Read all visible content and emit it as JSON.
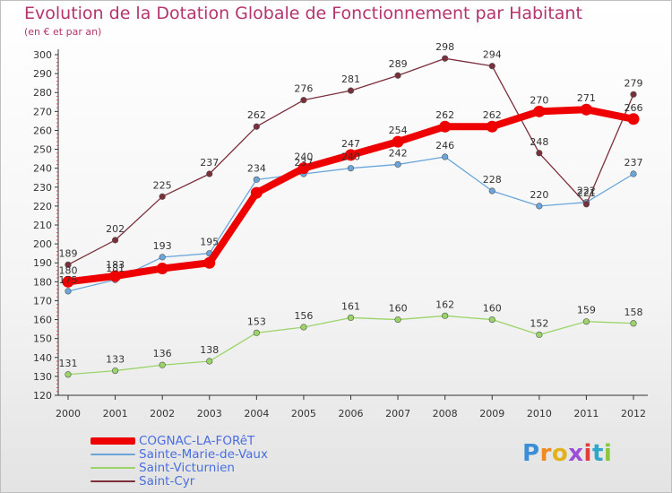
{
  "title": "Evolution de la Dotation Globale de Fonctionnement par Habitant",
  "subtitle": "(en € et par an)",
  "logo": {
    "text": "Proxiti",
    "letters": [
      {
        "ch": "P",
        "color": "#3a8fd6"
      },
      {
        "ch": "r",
        "color": "#f08a1c"
      },
      {
        "ch": "o",
        "color": "#e2b21a"
      },
      {
        "ch": "x",
        "color": "#9c4fd6"
      },
      {
        "ch": "i",
        "color": "#e23c3c"
      },
      {
        "ch": "t",
        "color": "#2ea7c9"
      },
      {
        "ch": "i",
        "color": "#8cc63f"
      }
    ]
  },
  "chart_data": {
    "type": "line",
    "x": [
      "2000",
      "2001",
      "2002",
      "2003",
      "2004",
      "2005",
      "2006",
      "2007",
      "2008",
      "2009",
      "2010",
      "2011",
      "2012"
    ],
    "ylim": [
      120,
      300
    ],
    "ytick_step": 10,
    "grid": false,
    "legend_position": "bottom-left",
    "series": [
      {
        "name": "COGNAC-LA-FORêT",
        "color": "#ee0000",
        "emphasis": true,
        "values": [
          180,
          183,
          187,
          190,
          227,
          240,
          247,
          254,
          262,
          262,
          270,
          271,
          266
        ],
        "labels": [
          "180",
          "183",
          null,
          null,
          null,
          "240",
          "247",
          "254",
          "262",
          "262",
          "270",
          "271",
          "266"
        ]
      },
      {
        "name": "Sainte-Marie-de-Vaux",
        "color": "#6aa6da",
        "emphasis": false,
        "values": [
          175,
          181,
          193,
          195,
          234,
          237,
          240,
          242,
          246,
          228,
          220,
          222,
          237
        ],
        "labels": [
          "175",
          "181",
          "193",
          "195",
          "234",
          "237",
          "240",
          "242",
          "246",
          "228",
          "220",
          "222",
          "237"
        ]
      },
      {
        "name": "Saint-Victurnien",
        "color": "#9ad468",
        "emphasis": false,
        "values": [
          131,
          133,
          136,
          138,
          153,
          156,
          161,
          160,
          162,
          160,
          152,
          159,
          158
        ],
        "labels": [
          "131",
          "133",
          "136",
          "138",
          "153",
          "156",
          "161",
          "160",
          "162",
          "160",
          "152",
          "159",
          "158"
        ]
      },
      {
        "name": "Saint-Cyr",
        "color": "#7b2f3a",
        "emphasis": false,
        "values": [
          189,
          202,
          225,
          237,
          262,
          276,
          281,
          289,
          298,
          294,
          248,
          221,
          279
        ],
        "labels": [
          "189",
          "202",
          "225",
          "237",
          "262",
          "276",
          "281",
          "289",
          "298",
          "294",
          "248",
          "221",
          "279"
        ]
      }
    ]
  }
}
